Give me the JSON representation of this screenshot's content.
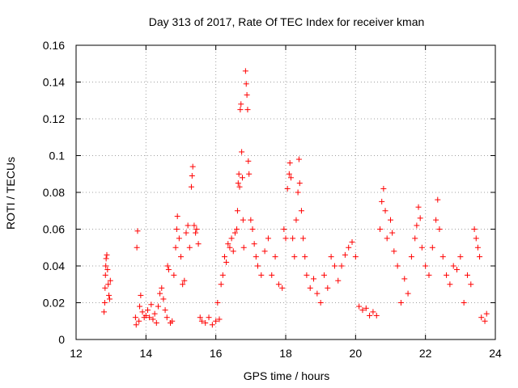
{
  "chart_data": {
    "type": "scatter",
    "title": "Day 313 of 2017, Rate Of TEC Index for receiver kman",
    "xlabel": "GPS time / hours",
    "ylabel": "ROTI / TECUs",
    "xlim": [
      12,
      24
    ],
    "ylim": [
      0,
      0.16
    ],
    "x_ticks": [
      12,
      14,
      16,
      18,
      20,
      22,
      24
    ],
    "x_tick_labels": [
      "12",
      "14",
      "16",
      "18",
      "20",
      "22",
      "24"
    ],
    "y_ticks": [
      0,
      0.02,
      0.04,
      0.06,
      0.08,
      0.1,
      0.12,
      0.14,
      0.16
    ],
    "y_tick_labels": [
      "0",
      "0.02",
      "0.04",
      "0.06",
      "0.08",
      "0.1",
      "0.12",
      "0.14",
      "0.16"
    ],
    "grid": true,
    "marker": "+",
    "marker_color": "#ff0000",
    "series": [
      {
        "points": [
          [
            12.8,
            0.015
          ],
          [
            12.82,
            0.02
          ],
          [
            12.83,
            0.028
          ],
          [
            12.84,
            0.035
          ],
          [
            12.85,
            0.04
          ],
          [
            12.86,
            0.044
          ],
          [
            12.88,
            0.046
          ],
          [
            12.9,
            0.038
          ],
          [
            12.92,
            0.03
          ],
          [
            12.94,
            0.024
          ],
          [
            12.96,
            0.022
          ],
          [
            12.98,
            0.032
          ],
          [
            13.7,
            0.012
          ],
          [
            13.72,
            0.008
          ],
          [
            13.74,
            0.05
          ],
          [
            13.76,
            0.059
          ],
          [
            13.8,
            0.01
          ],
          [
            13.82,
            0.018
          ],
          [
            13.85,
            0.024
          ],
          [
            13.9,
            0.015
          ],
          [
            13.95,
            0.012
          ],
          [
            14.0,
            0.013
          ],
          [
            14.05,
            0.016
          ],
          [
            14.1,
            0.012
          ],
          [
            14.15,
            0.019
          ],
          [
            14.2,
            0.011
          ],
          [
            14.25,
            0.014
          ],
          [
            14.3,
            0.009
          ],
          [
            14.35,
            0.018
          ],
          [
            14.4,
            0.025
          ],
          [
            14.45,
            0.028
          ],
          [
            14.5,
            0.022
          ],
          [
            14.55,
            0.016
          ],
          [
            14.6,
            0.012
          ],
          [
            14.62,
            0.04
          ],
          [
            14.65,
            0.038
          ],
          [
            14.7,
            0.009
          ],
          [
            14.75,
            0.01
          ],
          [
            14.8,
            0.035
          ],
          [
            14.85,
            0.05
          ],
          [
            14.88,
            0.06
          ],
          [
            14.9,
            0.067
          ],
          [
            14.95,
            0.055
          ],
          [
            15.0,
            0.045
          ],
          [
            15.05,
            0.03
          ],
          [
            15.1,
            0.032
          ],
          [
            15.15,
            0.058
          ],
          [
            15.2,
            0.062
          ],
          [
            15.25,
            0.05
          ],
          [
            15.3,
            0.083
          ],
          [
            15.32,
            0.089
          ],
          [
            15.34,
            0.094
          ],
          [
            15.38,
            0.062
          ],
          [
            15.42,
            0.058
          ],
          [
            15.45,
            0.06
          ],
          [
            15.5,
            0.052
          ],
          [
            15.55,
            0.012
          ],
          [
            15.6,
            0.01
          ],
          [
            15.7,
            0.009
          ],
          [
            15.8,
            0.012
          ],
          [
            15.9,
            0.008
          ],
          [
            16.0,
            0.01
          ],
          [
            16.05,
            0.02
          ],
          [
            16.1,
            0.011
          ],
          [
            16.15,
            0.03
          ],
          [
            16.2,
            0.035
          ],
          [
            16.25,
            0.045
          ],
          [
            16.3,
            0.042
          ],
          [
            16.35,
            0.052
          ],
          [
            16.4,
            0.05
          ],
          [
            16.45,
            0.055
          ],
          [
            16.5,
            0.048
          ],
          [
            16.55,
            0.058
          ],
          [
            16.6,
            0.06
          ],
          [
            16.62,
            0.07
          ],
          [
            16.64,
            0.085
          ],
          [
            16.66,
            0.09
          ],
          [
            16.68,
            0.083
          ],
          [
            16.7,
            0.125
          ],
          [
            16.72,
            0.128
          ],
          [
            16.74,
            0.102
          ],
          [
            16.76,
            0.088
          ],
          [
            16.78,
            0.065
          ],
          [
            16.8,
            0.05
          ],
          [
            16.85,
            0.146
          ],
          [
            16.87,
            0.139
          ],
          [
            16.89,
            0.133
          ],
          [
            16.91,
            0.125
          ],
          [
            16.93,
            0.097
          ],
          [
            16.95,
            0.09
          ],
          [
            17.0,
            0.065
          ],
          [
            17.05,
            0.06
          ],
          [
            17.1,
            0.052
          ],
          [
            17.15,
            0.045
          ],
          [
            17.2,
            0.04
          ],
          [
            17.3,
            0.035
          ],
          [
            17.4,
            0.048
          ],
          [
            17.5,
            0.055
          ],
          [
            17.6,
            0.035
          ],
          [
            17.7,
            0.045
          ],
          [
            17.8,
            0.03
          ],
          [
            17.9,
            0.028
          ],
          [
            17.95,
            0.06
          ],
          [
            18.0,
            0.055
          ],
          [
            18.05,
            0.082
          ],
          [
            18.1,
            0.09
          ],
          [
            18.12,
            0.096
          ],
          [
            18.15,
            0.088
          ],
          [
            18.2,
            0.055
          ],
          [
            18.25,
            0.045
          ],
          [
            18.3,
            0.065
          ],
          [
            18.35,
            0.08
          ],
          [
            18.38,
            0.098
          ],
          [
            18.4,
            0.085
          ],
          [
            18.45,
            0.07
          ],
          [
            18.5,
            0.055
          ],
          [
            18.55,
            0.045
          ],
          [
            18.6,
            0.035
          ],
          [
            18.7,
            0.028
          ],
          [
            18.8,
            0.033
          ],
          [
            18.9,
            0.025
          ],
          [
            19.0,
            0.02
          ],
          [
            19.1,
            0.035
          ],
          [
            19.2,
            0.028
          ],
          [
            19.3,
            0.045
          ],
          [
            19.4,
            0.04
          ],
          [
            19.5,
            0.032
          ],
          [
            19.6,
            0.04
          ],
          [
            19.7,
            0.046
          ],
          [
            19.8,
            0.05
          ],
          [
            19.9,
            0.053
          ],
          [
            20.0,
            0.045
          ],
          [
            20.1,
            0.018
          ],
          [
            20.2,
            0.016
          ],
          [
            20.3,
            0.017
          ],
          [
            20.4,
            0.013
          ],
          [
            20.5,
            0.015
          ],
          [
            20.6,
            0.013
          ],
          [
            20.7,
            0.06
          ],
          [
            20.75,
            0.075
          ],
          [
            20.8,
            0.082
          ],
          [
            20.85,
            0.07
          ],
          [
            20.9,
            0.055
          ],
          [
            21.0,
            0.065
          ],
          [
            21.05,
            0.058
          ],
          [
            21.1,
            0.048
          ],
          [
            21.2,
            0.04
          ],
          [
            21.3,
            0.02
          ],
          [
            21.4,
            0.033
          ],
          [
            21.5,
            0.025
          ],
          [
            21.6,
            0.045
          ],
          [
            21.7,
            0.055
          ],
          [
            21.75,
            0.062
          ],
          [
            21.8,
            0.072
          ],
          [
            21.85,
            0.066
          ],
          [
            21.9,
            0.05
          ],
          [
            22.0,
            0.04
          ],
          [
            22.1,
            0.035
          ],
          [
            22.2,
            0.05
          ],
          [
            22.3,
            0.065
          ],
          [
            22.35,
            0.076
          ],
          [
            22.4,
            0.06
          ],
          [
            22.5,
            0.045
          ],
          [
            22.6,
            0.035
          ],
          [
            22.7,
            0.03
          ],
          [
            22.8,
            0.04
          ],
          [
            22.9,
            0.038
          ],
          [
            23.0,
            0.045
          ],
          [
            23.1,
            0.02
          ],
          [
            23.2,
            0.035
          ],
          [
            23.3,
            0.03
          ],
          [
            23.4,
            0.06
          ],
          [
            23.45,
            0.055
          ],
          [
            23.5,
            0.05
          ],
          [
            23.55,
            0.045
          ],
          [
            23.6,
            0.012
          ],
          [
            23.7,
            0.01
          ],
          [
            23.75,
            0.014
          ]
        ]
      }
    ]
  }
}
